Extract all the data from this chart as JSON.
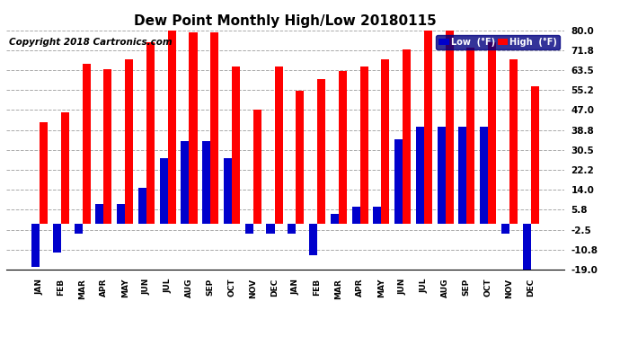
{
  "title": "Dew Point Monthly High/Low 20180115",
  "copyright": "Copyright 2018 Cartronics.com",
  "ylabel_right_ticks": [
    -19.0,
    -10.8,
    -2.5,
    5.8,
    14.0,
    22.2,
    30.5,
    38.8,
    47.0,
    55.2,
    63.5,
    71.8,
    80.0
  ],
  "months": [
    "JAN",
    "FEB",
    "MAR",
    "APR",
    "MAY",
    "JUN",
    "JUL",
    "AUG",
    "SEP",
    "OCT",
    "NOV",
    "DEC",
    "JAN",
    "FEB",
    "MAR",
    "APR",
    "MAY",
    "JUN",
    "JUL",
    "AUG",
    "SEP",
    "OCT",
    "NOV",
    "DEC"
  ],
  "high_values": [
    42,
    46,
    66,
    64,
    68,
    75,
    82,
    79,
    79,
    65,
    47,
    65,
    55,
    60,
    63,
    65,
    68,
    72,
    80,
    80,
    73,
    75,
    68,
    57
  ],
  "low_values": [
    -18,
    -12,
    -4,
    8,
    8,
    15,
    27,
    34,
    34,
    27,
    -4,
    -4,
    -4,
    -13,
    4,
    7,
    7,
    35,
    40,
    40,
    40,
    40,
    -4,
    -19
  ],
  "high_color": "#FF0000",
  "low_color": "#0000CC",
  "background_color": "#FFFFFF",
  "plot_bg_color": "#FFFFFF",
  "grid_color": "#AAAAAA",
  "ylim": [
    -19.0,
    80.0
  ],
  "bar_width": 0.38,
  "legend_low_label": "Low  (°F)",
  "legend_high_label": "High  (°F)",
  "title_fontsize": 11,
  "copyright_fontsize": 7.5
}
